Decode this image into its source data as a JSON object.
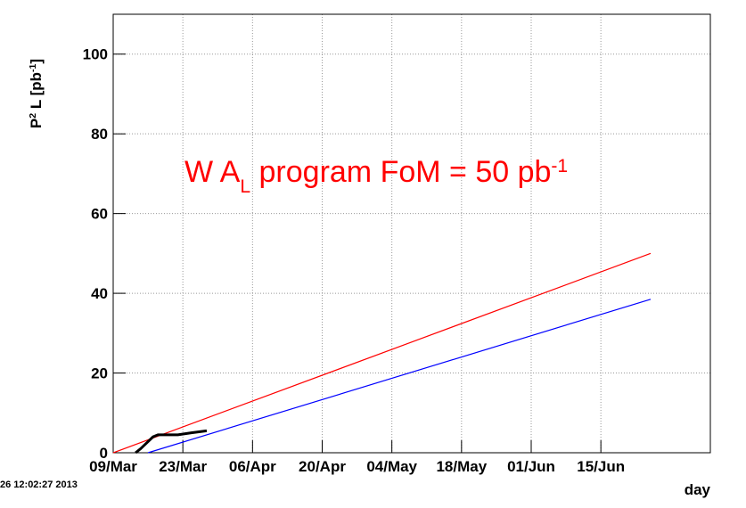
{
  "chart_data": {
    "type": "line",
    "y_label_parts": [
      "P",
      "2",
      " L [pb",
      "-1",
      "]"
    ],
    "x_label": "day",
    "timestamp": "26 12:02:27 2013",
    "annotation_parts": [
      "W A",
      "L",
      " program FoM = 50 pb",
      "-1"
    ],
    "annotation_color": "#ff0000",
    "xlim": [
      0,
      120
    ],
    "xticks": [
      {
        "value": 0,
        "label": "09/Mar"
      },
      {
        "value": 14,
        "label": "23/Mar"
      },
      {
        "value": 28,
        "label": "06/Apr"
      },
      {
        "value": 42,
        "label": "20/Apr"
      },
      {
        "value": 56,
        "label": "04/May"
      },
      {
        "value": 70,
        "label": "18/May"
      },
      {
        "value": 84,
        "label": "01/Jun"
      },
      {
        "value": 98,
        "label": "15/Jun"
      }
    ],
    "ylim": [
      0,
      110
    ],
    "yticks": [
      0,
      20,
      40,
      60,
      80,
      100
    ],
    "grid": true,
    "series": [
      {
        "color": "#ff0000",
        "x": [
          0,
          108
        ],
        "values": [
          0,
          50
        ]
      },
      {
        "color": "#0000ff",
        "x": [
          7,
          108
        ],
        "values": [
          0,
          38.5
        ]
      },
      {
        "color": "#000000",
        "x": [
          4.5,
          5.5,
          8,
          9,
          13,
          15.7,
          18.8
        ],
        "values": [
          0,
          1,
          4,
          4.5,
          4.5,
          5,
          5.5
        ]
      }
    ]
  }
}
